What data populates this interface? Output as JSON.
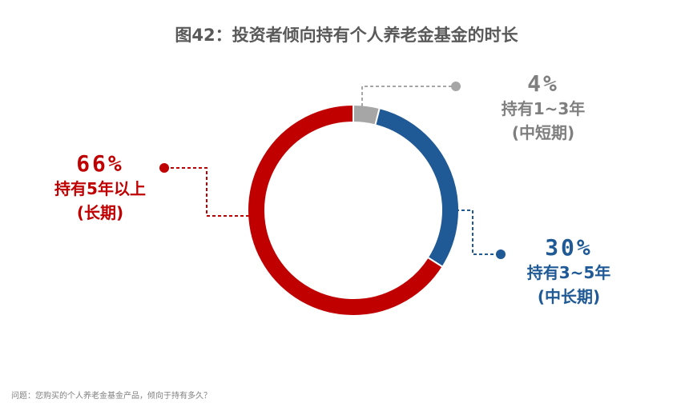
{
  "title": "图42：投资者倾向持有个人养老金基金的时长",
  "note": "问题：您购买的个人养老金基金产品，倾向于持有多久？",
  "chart_data": {
    "type": "pie",
    "variant": "donut",
    "slices": [
      {
        "key": "short",
        "value": 4,
        "pct_label": "4%",
        "label1": "持有1~3年",
        "label2": "(中短期)",
        "color": "#a6a6a6"
      },
      {
        "key": "mid",
        "value": 30,
        "pct_label": "30%",
        "label1": "持有3~5年",
        "label2": "(中长期)",
        "color": "#1f5a96"
      },
      {
        "key": "long",
        "value": 66,
        "pct_label": "66%",
        "label1": "持有5年以上",
        "label2": "(长期)",
        "color": "#c00000"
      }
    ]
  }
}
